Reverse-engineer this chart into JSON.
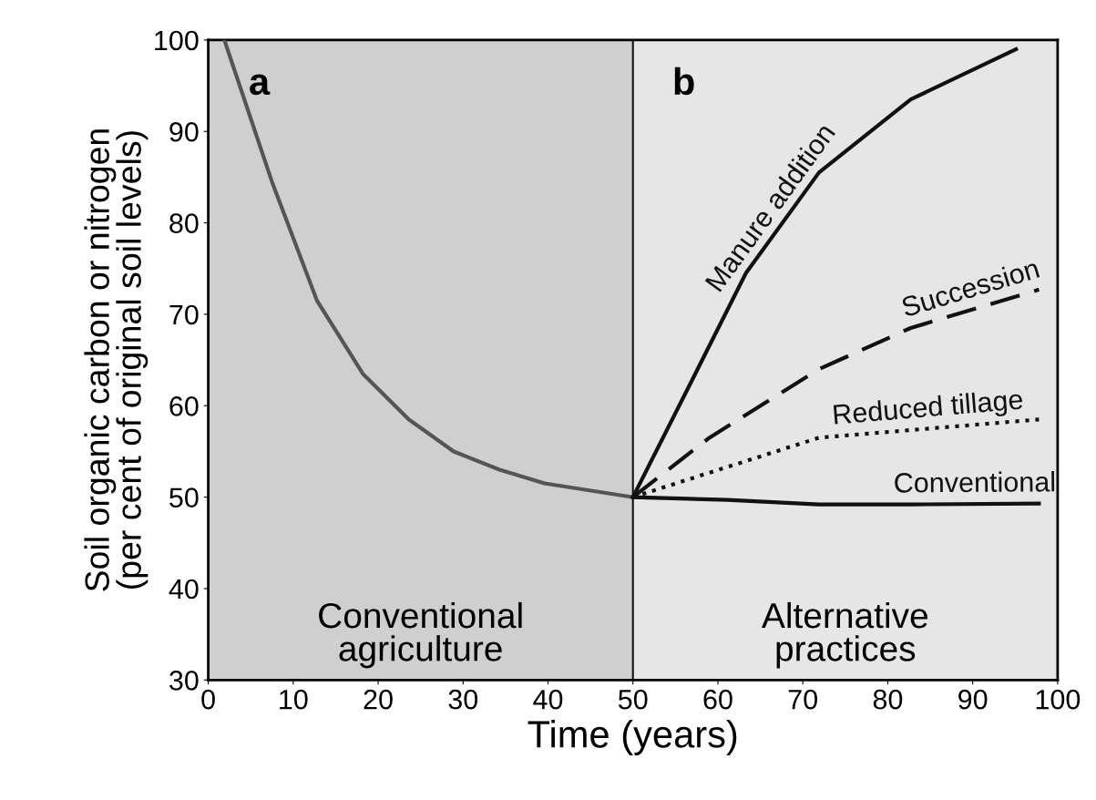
{
  "chart_data": {
    "type": "line",
    "xlabel": "Time (years)",
    "ylabel": "Soil organic carbon or nitrogen\n(per cent of original soil levels)",
    "xlim": [
      0,
      100
    ],
    "ylim": [
      30,
      100
    ],
    "xticks": [
      0,
      10,
      20,
      30,
      40,
      50,
      60,
      70,
      80,
      90,
      100
    ],
    "yticks": [
      30,
      40,
      50,
      60,
      70,
      80,
      90,
      100
    ],
    "grid": false,
    "marker": "none",
    "series": [
      {
        "color": "#555555",
        "line_style": "solid",
        "x": [
          1.9,
          7.5,
          12.8,
          18.2,
          23.6,
          28.9,
          34.3,
          39.6,
          50
        ],
        "values": [
          100,
          84.5,
          71.5,
          63.5,
          58.5,
          55,
          53,
          51.5,
          50
        ]
      },
      {
        "name": "Manure addition",
        "color": "#111111",
        "line_style": "solid",
        "x": [
          50,
          56.8,
          63.3,
          71.9,
          82.7,
          95.1
        ],
        "values": [
          50,
          62.5,
          74.5,
          85.5,
          93.5,
          99
        ]
      },
      {
        "name": "Succession",
        "color": "#111111",
        "line_style": "dashed",
        "x": [
          50,
          59,
          71.9,
          82.7,
          97.8
        ],
        "values": [
          50,
          56.5,
          64,
          68.5,
          72.7
        ]
      },
      {
        "name": "Reduced tillage",
        "color": "#111111",
        "line_style": "dotted",
        "x": [
          50,
          71.9,
          97.8
        ],
        "values": [
          50,
          56.5,
          58.5
        ]
      },
      {
        "name": "Conventional",
        "color": "#111111",
        "line_style": "solid",
        "x": [
          50,
          61.1,
          71.9,
          82.7,
          97.8
        ],
        "values": [
          50,
          49.7,
          49.2,
          49.2,
          49.3
        ]
      }
    ],
    "ref_lines": [
      {
        "axis": "x",
        "value": 50,
        "label": null,
        "color": "#111111"
      }
    ],
    "bands": [
      {
        "axis": "x",
        "from": 0,
        "to": 50,
        "label": null,
        "color": "#cfcfcf"
      },
      {
        "axis": "x",
        "from": 50,
        "to": 100,
        "label": null,
        "color": "#e6e6e6"
      }
    ],
    "annotations": [
      "a",
      "b",
      "Conventional\nagriculture",
      "Alternative\npractices"
    ]
  }
}
